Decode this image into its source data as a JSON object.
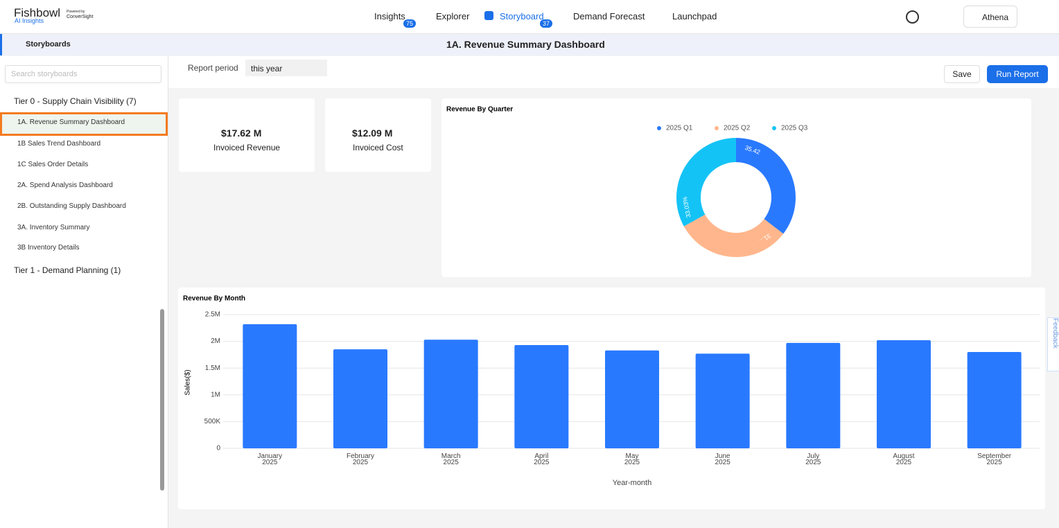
{
  "header": {
    "brand": "Fishbowl",
    "brand_sub": "AI Insights",
    "powered": "Powered by",
    "powered_name": "ConverSight",
    "nav": [
      {
        "label": "Insights",
        "badge": "75"
      },
      {
        "label": "Explorer"
      },
      {
        "label": "Storyboard",
        "badge": "37"
      },
      {
        "label": "Demand Forecast"
      },
      {
        "label": "Launchpad"
      }
    ],
    "user": "Athena"
  },
  "subheader": {
    "section": "Storyboards",
    "title": "1A. Revenue Summary Dashboard"
  },
  "sidebar": {
    "search_placeholder": "Search storyboards",
    "groups": [
      {
        "label": "Tier 0 - Supply Chain Visibility (7)",
        "items": [
          "1A. Revenue Summary Dashboard",
          "1B Sales Trend Dashboard",
          "1C Sales Order Details",
          "2A. Spend Analysis Dashboard",
          "2B. Outstanding Supply Dashboard",
          "3A. Inventory Summary",
          "3B Inventory Details"
        ]
      },
      {
        "label": "Tier 1 - Demand Planning (1)"
      }
    ]
  },
  "toolbar": {
    "filter_label": "Report period",
    "filter_value": "this year",
    "save": "Save",
    "run": "Run Report"
  },
  "kpis": [
    {
      "value": "$17.62 M",
      "label": "Invoiced Revenue"
    },
    {
      "value": "$12.09 M",
      "label": "Invoiced Cost"
    }
  ],
  "feedback": "Feedback",
  "chart_data": [
    {
      "type": "pie",
      "title": "Revenue By Quarter",
      "categories": [
        "2025 Q1",
        "2025 Q2",
        "2025 Q3"
      ],
      "values": [
        35.42,
        31.55,
        33.03
      ],
      "value_labels": [
        "35.42",
        "31...",
        "33.03%"
      ],
      "colors": [
        "#2979ff",
        "#ffb68c",
        "#14c3f6"
      ],
      "legend": "top"
    },
    {
      "type": "bar",
      "title": "Revenue By Month",
      "x_label": "Year-month",
      "y_label": "Sales($)",
      "categories": [
        "January 2025",
        "February 2025",
        "March 2025",
        "April 2025",
        "May 2025",
        "June 2025",
        "July 2025",
        "August 2025",
        "September 2025"
      ],
      "values": [
        2320000,
        1850000,
        2030000,
        1930000,
        1830000,
        1770000,
        1970000,
        2020000,
        1800000
      ],
      "color": "#2979ff",
      "ylim": [
        0,
        2500000
      ],
      "yticks": [
        {
          "value": 0,
          "label": "0"
        },
        {
          "value": 500000,
          "label": "500K"
        },
        {
          "value": 1000000,
          "label": "1M"
        },
        {
          "value": 1500000,
          "label": "1.5M"
        },
        {
          "value": 2000000,
          "label": "2M"
        },
        {
          "value": 2500000,
          "label": "2.5M"
        }
      ],
      "grid": true
    }
  ]
}
